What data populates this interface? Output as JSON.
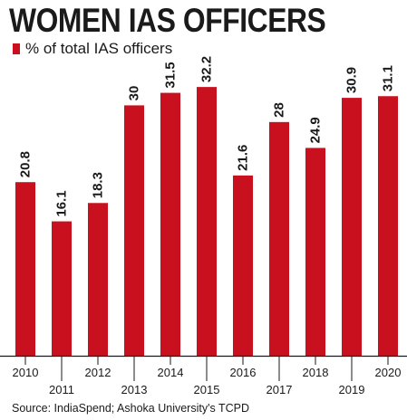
{
  "chart_data": {
    "type": "bar",
    "title": "WOMEN IAS OFFICERS",
    "categories": [
      "2010",
      "2011",
      "2012",
      "2013",
      "2014",
      "2015",
      "2016",
      "2017",
      "2018",
      "2019",
      "2020"
    ],
    "series": [
      {
        "name": "% of total IAS officers",
        "values": [
          20.8,
          16.1,
          18.3,
          30,
          31.5,
          32.2,
          21.6,
          28,
          24.9,
          30.9,
          31.1
        ],
        "labels": [
          "20.8",
          "16.1",
          "18.3",
          "30",
          "31.5",
          "32.2",
          "21.6",
          "28",
          "24.9",
          "30.9",
          "31.1"
        ]
      }
    ],
    "ylim": [
      0,
      35
    ],
    "grid": false,
    "legend_position": "top-left",
    "colors": {
      "bar": "#c8101e",
      "axis": "#1a1a1a",
      "text": "#1a1a1a"
    }
  },
  "source": "Source: IndiaSpend; Ashoka University's TCPD"
}
